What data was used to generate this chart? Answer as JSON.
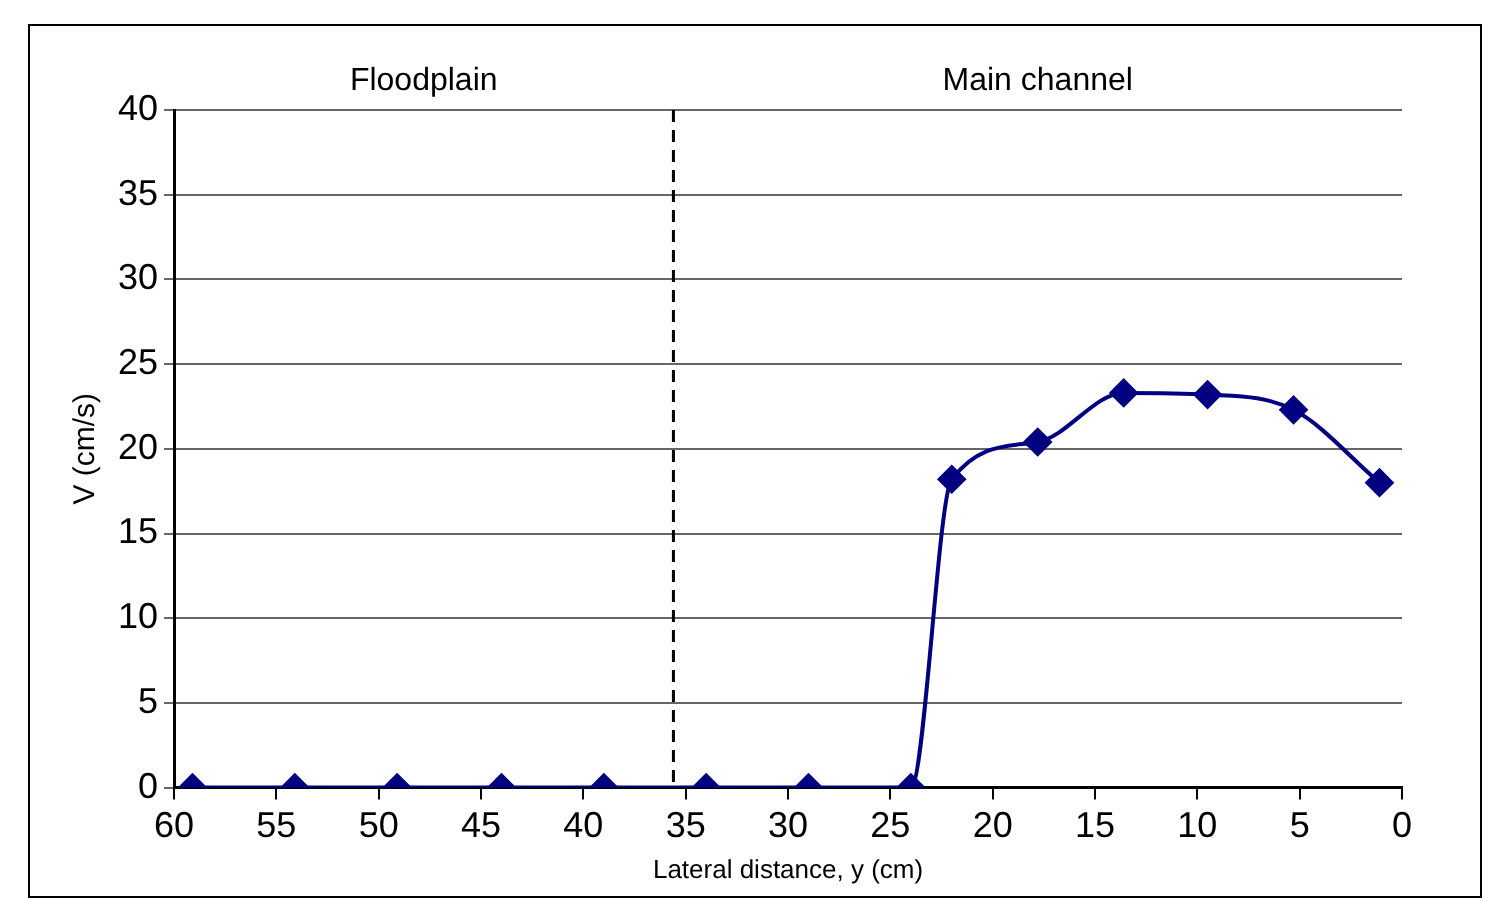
{
  "chart_data": {
    "type": "line",
    "xlabel": "Lateral distance, y (cm)",
    "ylabel": "V (cm/s)",
    "x": [
      59.1,
      54.1,
      49.1,
      44.0,
      39.0,
      34.0,
      29.0,
      24.0,
      22.0,
      17.8,
      13.6,
      9.5,
      5.3,
      1.1
    ],
    "series": [
      {
        "color": "#000080",
        "values": [
          0,
          0,
          0,
          0,
          0,
          0,
          0,
          0,
          18.2,
          20.4,
          23.3,
          23.2,
          22.3,
          18.0
        ]
      }
    ],
    "xlim": [
      60,
      0
    ],
    "xticks": [
      60,
      55,
      50,
      45,
      40,
      35,
      30,
      25,
      20,
      15,
      10,
      5,
      0
    ],
    "ylim": [
      0,
      40
    ],
    "yticks": [
      0,
      5,
      10,
      15,
      20,
      25,
      30,
      35,
      40
    ],
    "grid": "y",
    "legend": false,
    "marker": "diamond",
    "line_style": "solid",
    "ref_lines": [
      {
        "axis": "x",
        "value": 35.6,
        "color": "#000000",
        "line_style": "dashed"
      }
    ],
    "annotations": [
      "Floodplain",
      "Main channel"
    ]
  }
}
